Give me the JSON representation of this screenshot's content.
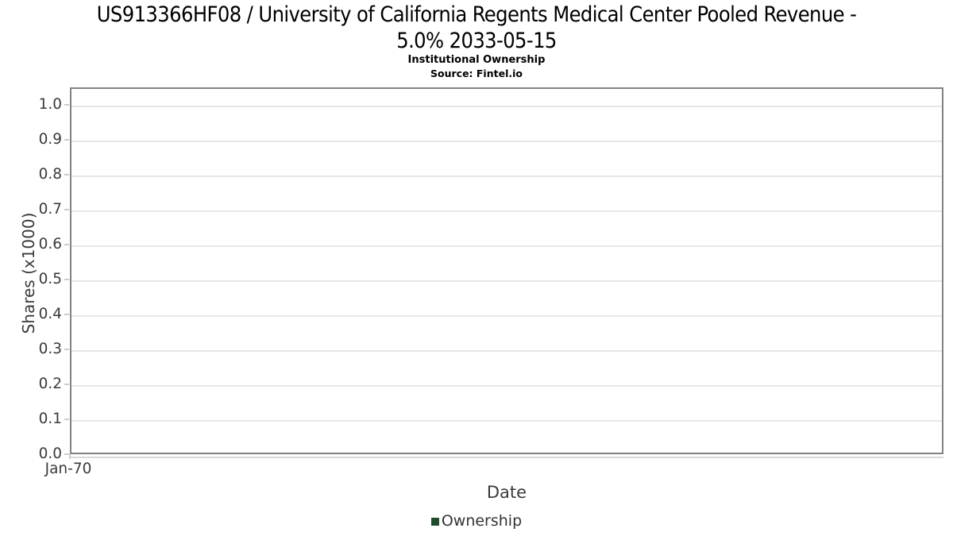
{
  "header": {
    "title_line1": "US913366HF08 / University of California Regents Medical Center Pooled Revenue -",
    "title_line2": "5.0% 2033-05-15",
    "subtitle": "Institutional Ownership",
    "source": "Source: Fintel.io"
  },
  "chart_data": {
    "type": "line",
    "title": "US913366HF08 / University of California Regents Medical Center Pooled Revenue - 5.0% 2033-05-15",
    "subtitle": "Institutional Ownership",
    "source": "Source: Fintel.io",
    "xlabel": "Date",
    "ylabel": "Shares (x1000)",
    "x_ticks": [
      "Jan-70"
    ],
    "y_ticks": [
      "0.0",
      "0.1",
      "0.2",
      "0.3",
      "0.4",
      "0.5",
      "0.6",
      "0.7",
      "0.8",
      "0.9",
      "1.0"
    ],
    "ylim": [
      0,
      1.05
    ],
    "grid": "horizontal",
    "legend_position": "bottom",
    "series": [
      {
        "name": "Ownership",
        "color": "#1e4d2b",
        "x": [],
        "values": []
      }
    ],
    "colors": {
      "plot_border": "#828282",
      "gridline": "#e7e7e7",
      "tick": "#cccccc",
      "axis_text": "#3a3a3a",
      "title_text": "#000000",
      "legend_swatch": "#1e4d2b"
    }
  }
}
